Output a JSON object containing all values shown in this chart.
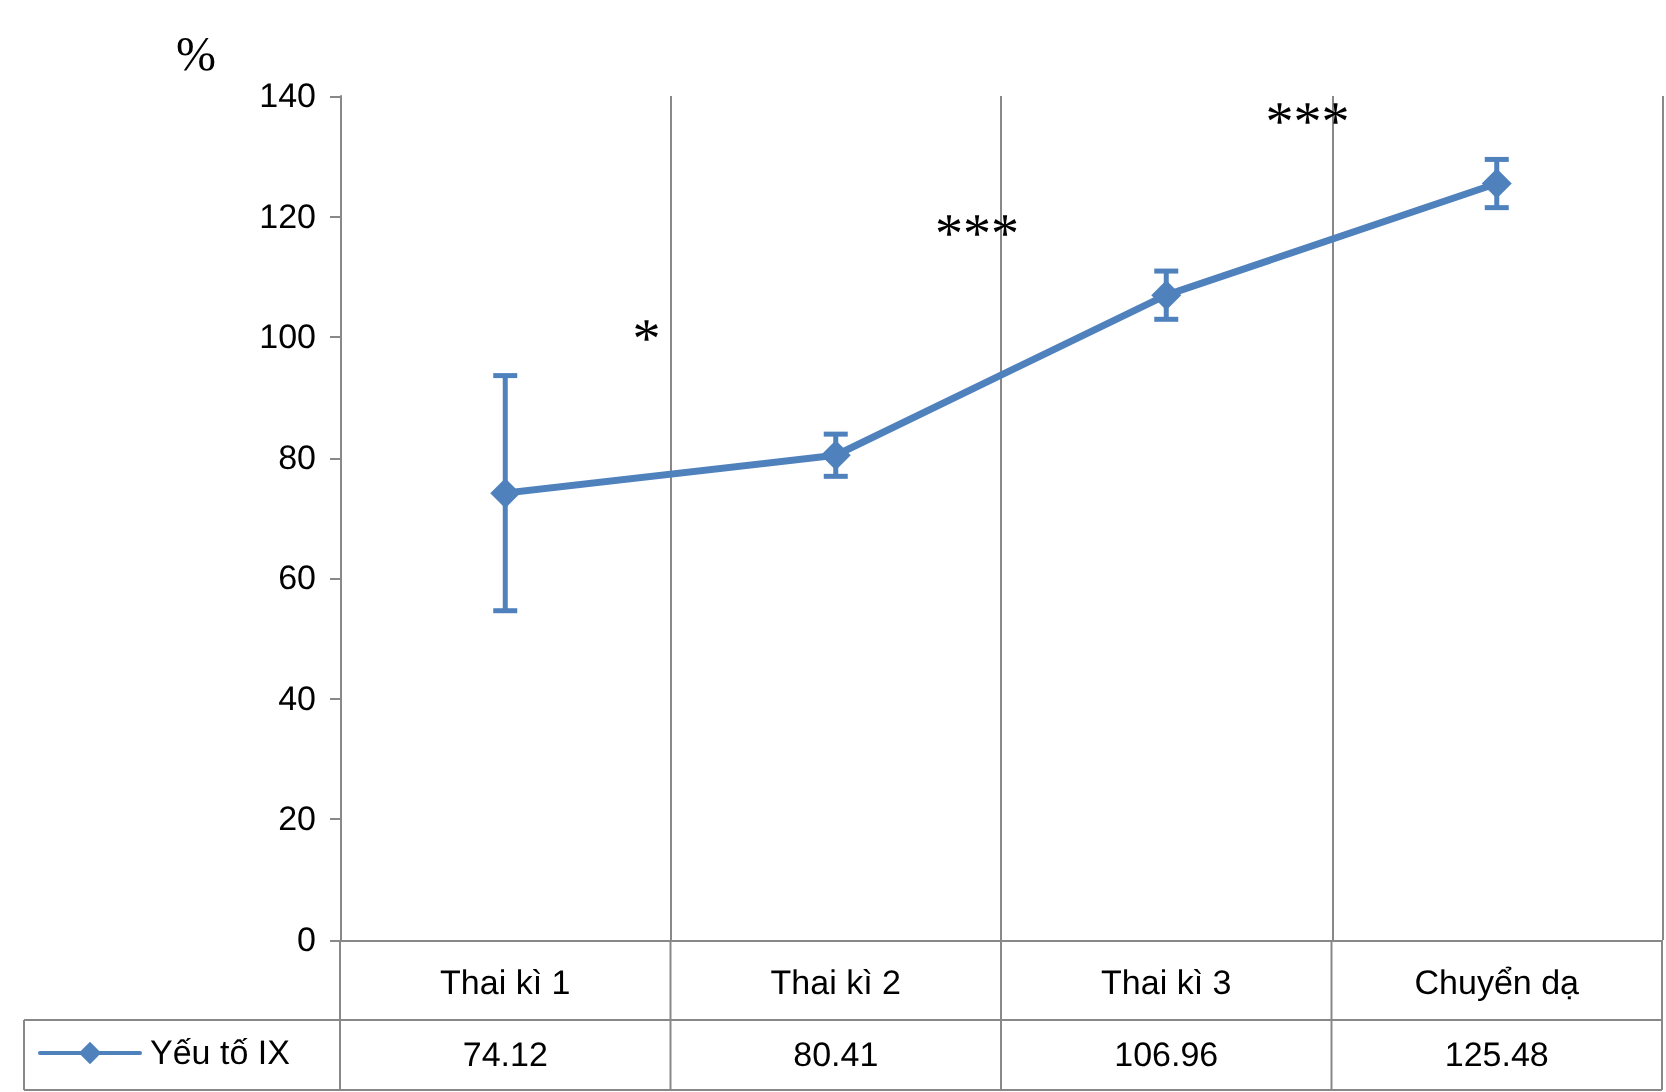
{
  "chart_data": {
    "type": "line",
    "ylabel": "%",
    "categories": [
      "Thai kì 1",
      "Thai kì 2",
      "Thai kì 3",
      "Chuyển dạ"
    ],
    "series": [
      {
        "name": "Yếu tố IX",
        "color": "#4f81bd",
        "values": [
          74.12,
          80.41,
          106.96,
          125.48
        ],
        "errors": [
          19.5,
          3.5,
          4,
          4
        ]
      }
    ],
    "ylim": [
      0,
      140
    ],
    "yticks": [
      0,
      20,
      40,
      60,
      80,
      100,
      120,
      140
    ],
    "annotations": [
      "*",
      "***",
      "***"
    ],
    "grid": "x",
    "legend": "bottom left",
    "marker": "diamond",
    "line_style": "solid",
    "data_labels": true
  }
}
